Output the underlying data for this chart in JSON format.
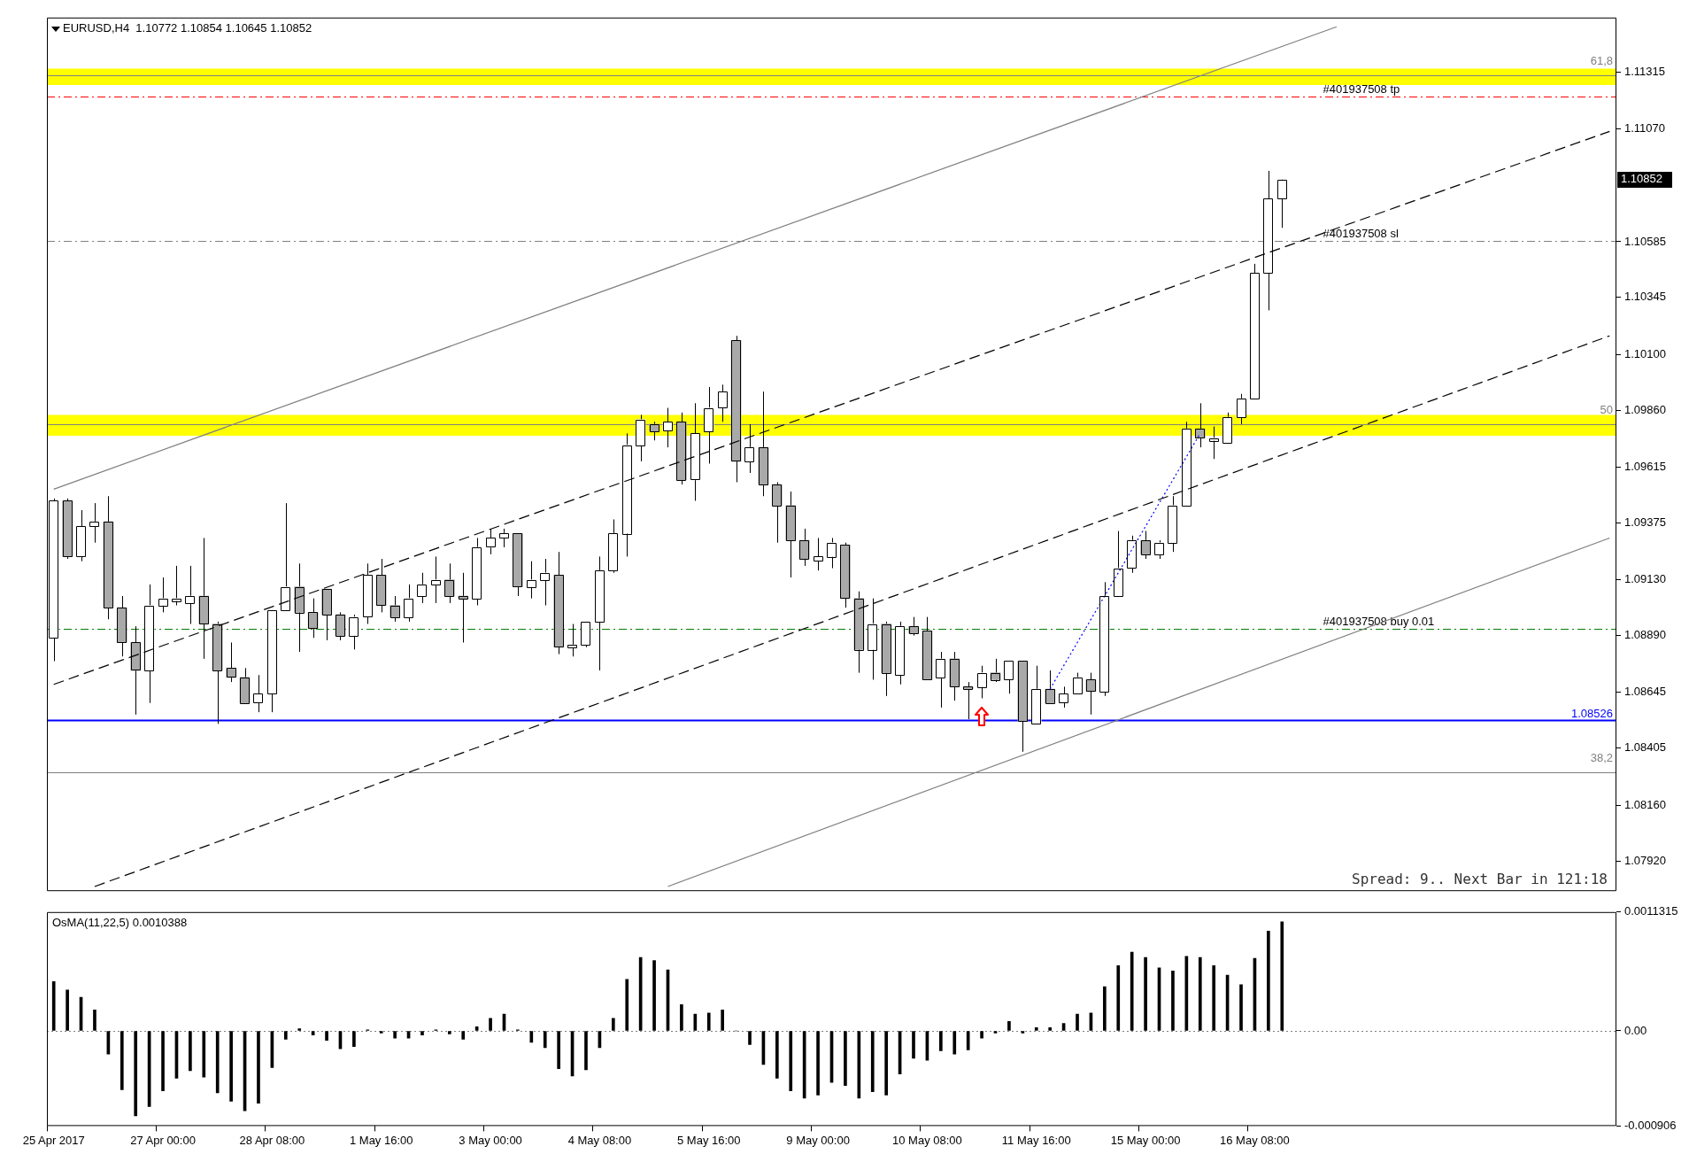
{
  "chart_data": [
    {
      "type": "candlestick",
      "title": "EURUSD,H4  1.10772 1.10854 1.10645 1.10852",
      "categories": [
        null,
        null,
        null,
        null,
        null,
        null,
        null,
        null,
        null,
        null,
        null,
        null,
        null,
        null,
        null,
        null,
        null,
        null,
        null,
        null,
        null,
        null,
        null,
        null,
        null,
        null,
        null,
        null,
        null,
        null,
        null,
        null,
        null,
        null,
        null,
        null,
        null,
        null,
        null,
        null,
        null,
        null,
        null,
        null,
        null,
        null,
        null,
        null,
        null,
        null,
        null,
        null,
        null,
        null,
        null,
        null,
        null,
        null,
        null,
        null,
        null,
        null,
        null,
        null,
        null,
        null,
        null,
        null,
        null,
        null,
        null,
        null,
        null,
        null,
        null,
        null,
        null,
        null,
        null,
        null,
        null,
        null,
        null,
        null,
        null,
        null,
        null,
        null,
        null,
        null,
        null,
        null,
        null,
        null,
        null,
        null,
        null,
        null,
        null,
        null,
        null,
        null,
        null,
        null,
        null,
        null,
        null,
        null,
        null,
        null,
        null,
        null,
        null,
        null,
        null
      ],
      "ohlc": [
        [
          1.0888,
          1.0948,
          1.0878,
          1.0947
        ],
        [
          1.0947,
          1.0948,
          1.0922,
          1.0923
        ],
        [
          1.0923,
          1.0943,
          1.0921,
          1.0936
        ],
        [
          1.0936,
          1.0946,
          1.0929,
          1.0938
        ],
        [
          1.0938,
          1.0949,
          1.0896,
          1.0901
        ],
        [
          1.0901,
          1.0906,
          1.088,
          1.0886
        ],
        [
          1.0886,
          1.0893,
          1.0855,
          1.0874
        ],
        [
          1.0874,
          1.0911,
          1.086,
          1.0902
        ],
        [
          1.0902,
          1.0914,
          1.0899,
          1.0905
        ],
        [
          1.0904,
          1.0919,
          1.0902,
          1.0905
        ],
        [
          1.0903,
          1.0919,
          1.0894,
          1.0906
        ],
        [
          1.0906,
          1.0931,
          1.0879,
          1.0894
        ],
        [
          1.0894,
          1.0895,
          1.0851,
          1.0874
        ],
        [
          1.0875,
          1.0886,
          1.0869,
          1.0871
        ],
        [
          1.0871,
          1.0875,
          1.086,
          1.086
        ],
        [
          1.086,
          1.0872,
          1.0856,
          1.0864
        ],
        [
          1.0864,
          1.09,
          1.0856,
          1.09
        ],
        [
          1.09,
          1.0946,
          1.09,
          1.091
        ],
        [
          1.091,
          1.092,
          1.0882,
          1.0899
        ],
        [
          1.0899,
          1.0905,
          1.0888,
          1.0892
        ],
        [
          1.0909,
          1.0909,
          1.0887,
          1.0898
        ],
        [
          1.0898,
          1.0899,
          1.0887,
          1.0889
        ],
        [
          1.0889,
          1.0898,
          1.0883,
          1.0897
        ],
        [
          1.0897,
          1.092,
          1.0894,
          1.0915
        ],
        [
          1.0915,
          1.0922,
          1.0899,
          1.0902
        ],
        [
          1.0902,
          1.0906,
          1.0895,
          1.0897
        ],
        [
          1.0897,
          1.0911,
          1.0895,
          1.0905
        ],
        [
          1.0906,
          1.0916,
          1.0903,
          1.0911
        ],
        [
          1.0911,
          1.0923,
          1.0903,
          1.0913
        ],
        [
          1.0913,
          1.092,
          1.0903,
          1.0906
        ],
        [
          1.0906,
          1.0916,
          1.0886,
          1.0905
        ],
        [
          1.0905,
          1.0931,
          1.0902,
          1.0927
        ],
        [
          1.0927,
          1.0935,
          1.0924,
          1.0931
        ],
        [
          1.0931,
          1.0935,
          1.0927,
          1.0933
        ],
        [
          1.0933,
          1.0933,
          1.0906,
          1.091
        ],
        [
          1.091,
          1.0921,
          1.0905,
          1.0913
        ],
        [
          1.0913,
          1.0922,
          1.0902,
          1.0916
        ],
        [
          1.0915,
          1.0925,
          1.0881,
          1.0884
        ],
        [
          1.0884,
          1.0894,
          1.088,
          1.0885
        ],
        [
          1.0885,
          1.0895,
          1.0884,
          1.0895
        ],
        [
          1.0895,
          1.0923,
          1.0874,
          1.0917
        ],
        [
          1.0917,
          1.0939,
          1.0916,
          1.0933
        ],
        [
          1.0933,
          1.0976,
          1.0923,
          1.0971
        ],
        [
          1.0971,
          1.0984,
          1.0964,
          1.0982
        ],
        [
          1.098,
          1.0981,
          1.0973,
          1.0977
        ],
        [
          1.0977,
          1.0987,
          1.097,
          1.0981
        ],
        [
          1.0981,
          1.0985,
          1.0954,
          1.0956
        ],
        [
          1.0956,
          1.0989,
          1.0947,
          1.0976
        ],
        [
          1.0977,
          1.0996,
          1.0963,
          1.0987
        ],
        [
          1.0987,
          1.0997,
          1.0981,
          1.0994
        ],
        [
          1.1016,
          1.1018,
          1.0955,
          1.0964
        ],
        [
          1.0964,
          1.098,
          1.0959,
          1.097
        ],
        [
          1.097,
          1.0994,
          1.0949,
          1.0954
        ],
        [
          1.0954,
          1.0955,
          1.0929,
          1.0945
        ],
        [
          1.0945,
          1.0951,
          1.0914,
          1.093
        ],
        [
          1.093,
          1.0935,
          1.0919,
          1.0922
        ],
        [
          1.0921,
          1.0931,
          1.0917,
          1.0923
        ],
        [
          1.0923,
          1.0931,
          1.0918,
          1.0929
        ],
        [
          1.0928,
          1.0929,
          1.0901,
          1.0905
        ],
        [
          1.0905,
          1.0908,
          1.0873,
          1.0883
        ],
        [
          1.0883,
          1.0905,
          1.087,
          1.0894
        ],
        [
          1.0894,
          1.0895,
          1.0863,
          1.0873
        ],
        [
          1.0872,
          1.0895,
          1.0868,
          1.0893
        ],
        [
          1.0893,
          1.0897,
          1.0889,
          1.089
        ],
        [
          1.0891,
          1.0897,
          1.087,
          1.087
        ],
        [
          1.0871,
          1.0882,
          1.0858,
          1.0879
        ],
        [
          1.0879,
          1.0882,
          1.0861,
          1.0867
        ],
        [
          1.0867,
          1.0869,
          1.0853,
          1.0866
        ],
        [
          1.0867,
          1.0876,
          1.0862,
          1.0873
        ],
        [
          1.0873,
          1.0879,
          1.0869,
          1.087
        ],
        [
          1.087,
          1.0878,
          1.0864,
          1.0878
        ],
        [
          1.0878,
          1.0878,
          1.0839,
          1.0852
        ],
        [
          1.0851,
          1.0876,
          1.0851,
          1.0866
        ],
        [
          1.0866,
          1.0874,
          1.086,
          1.086
        ],
        [
          1.086,
          1.0867,
          1.0858,
          1.0864
        ],
        [
          1.0864,
          1.0873,
          1.0864,
          1.0871
        ],
        [
          1.087,
          1.0873,
          1.0855,
          1.0865
        ],
        [
          1.0865,
          1.0912,
          1.0863,
          1.0906
        ],
        [
          1.0906,
          1.0934,
          1.0906,
          1.0918
        ],
        [
          1.0918,
          1.0932,
          1.0916,
          1.093
        ],
        [
          1.093,
          1.0934,
          1.0922,
          1.0924
        ],
        [
          1.0924,
          1.093,
          1.0922,
          1.0929
        ],
        [
          1.0929,
          1.0949,
          1.0925,
          1.0945
        ],
        [
          1.0945,
          1.0981,
          1.0945,
          1.0978
        ],
        [
          1.0978,
          1.0989,
          1.097,
          1.0974
        ],
        [
          1.0973,
          1.0979,
          1.0965,
          1.0974
        ],
        [
          1.0972,
          1.0985,
          1.0972,
          1.0983
        ],
        [
          1.0983,
          1.0993,
          1.098,
          1.0991
        ],
        [
          1.0991,
          1.1049,
          1.0991,
          1.1045
        ],
        [
          1.1045,
          1.1089,
          1.1029,
          1.1077
        ],
        [
          1.10772,
          1.10854,
          1.10645,
          1.10852
        ],
        null,
        null,
        null,
        null,
        null,
        null,
        null,
        null,
        null,
        null,
        null,
        null,
        null,
        null,
        null,
        null,
        null,
        null,
        null,
        null,
        null,
        null,
        null,
        null
      ],
      "colors": [
        "#ffffff",
        "#a9a9a9",
        "#ffffff",
        "#ffffff",
        "#a9a9a9",
        "#a9a9a9",
        "#a9a9a9",
        "#ffffff",
        "#ffffff",
        "#ffffff",
        "#ffffff",
        "#a9a9a9",
        "#a9a9a9",
        "#a9a9a9",
        "#a9a9a9",
        "#ffffff",
        "#ffffff",
        "#ffffff",
        "#a9a9a9",
        "#a9a9a9",
        "#a9a9a9",
        "#a9a9a9",
        "#ffffff",
        "#ffffff",
        "#a9a9a9",
        "#a9a9a9",
        "#ffffff",
        "#ffffff",
        "#ffffff",
        "#a9a9a9",
        "#a9a9a9",
        "#ffffff",
        "#ffffff",
        "#ffffff",
        "#a9a9a9",
        "#ffffff",
        "#ffffff",
        "#a9a9a9",
        "#ffffff",
        "#ffffff",
        "#ffffff",
        "#ffffff",
        "#ffffff",
        "#ffffff",
        "#a9a9a9",
        "#ffffff",
        "#a9a9a9",
        "#ffffff",
        "#ffffff",
        "#ffffff",
        "#a9a9a9",
        "#ffffff",
        "#a9a9a9",
        "#a9a9a9",
        "#a9a9a9",
        "#a9a9a9",
        "#ffffff",
        "#ffffff",
        "#a9a9a9",
        "#a9a9a9",
        "#ffffff",
        "#a9a9a9",
        "#ffffff",
        "#a9a9a9",
        "#a9a9a9",
        "#ffffff",
        "#a9a9a9",
        "#a9a9a9",
        "#ffffff",
        "#a9a9a9",
        "#ffffff",
        "#a9a9a9",
        "#ffffff",
        "#a9a9a9",
        "#ffffff",
        "#ffffff",
        "#a9a9a9",
        "#ffffff",
        "#ffffff",
        "#ffffff",
        "#a9a9a9",
        "#ffffff",
        "#ffffff",
        "#ffffff",
        "#a9a9a9",
        "#ffffff",
        "#ffffff",
        "#ffffff",
        "#ffffff",
        "#ffffff",
        "#ffffff",
        null,
        null,
        null,
        null,
        null,
        null,
        null,
        null,
        null,
        null,
        null,
        null,
        null,
        null,
        null,
        null,
        null,
        null,
        null,
        null,
        null,
        null,
        null,
        null
      ],
      "color": "#000000",
      "series": [
        {
          "type": "line",
          "color": "#808080",
          "line_style": "solid",
          "values": [
            1.0952,
            null,
            null,
            null,
            null,
            null,
            null,
            null,
            null,
            null,
            null,
            null,
            null,
            null,
            null,
            null,
            null,
            null,
            null,
            null,
            null,
            null,
            null,
            null,
            null,
            null,
            null,
            null,
            null,
            null,
            null,
            null,
            null,
            null,
            null,
            null,
            null,
            null,
            null,
            null,
            null,
            null,
            null,
            null,
            null,
            null,
            null,
            null,
            null,
            null,
            null,
            null,
            null,
            null,
            null,
            null,
            null,
            null,
            null,
            null,
            null,
            null,
            null,
            null,
            null,
            null,
            null,
            null,
            null,
            null,
            null,
            null,
            null,
            null,
            null,
            null,
            null,
            null,
            null,
            null,
            null,
            null,
            null,
            null,
            null,
            null,
            null,
            null,
            null,
            null,
            null,
            null,
            null,
            null,
            1.1151,
            null,
            null,
            null,
            null,
            null,
            null,
            null,
            null,
            null,
            null,
            null,
            null,
            null,
            null,
            null,
            null,
            null,
            null,
            null,
            null
          ]
        },
        {
          "type": "line",
          "color": "#000000",
          "line_style": "dashed",
          "values": [
            1.0868,
            null,
            null,
            null,
            null,
            null,
            null,
            null,
            null,
            null,
            null,
            null,
            null,
            null,
            null,
            null,
            null,
            null,
            null,
            null,
            null,
            null,
            null,
            null,
            null,
            null,
            null,
            null,
            null,
            null,
            null,
            null,
            null,
            null,
            null,
            null,
            null,
            null,
            null,
            null,
            null,
            null,
            null,
            null,
            null,
            null,
            null,
            null,
            null,
            null,
            null,
            null,
            null,
            null,
            null,
            null,
            null,
            null,
            null,
            null,
            null,
            null,
            null,
            null,
            null,
            null,
            null,
            null,
            null,
            null,
            null,
            null,
            null,
            null,
            null,
            null,
            null,
            null,
            null,
            null,
            null,
            null,
            null,
            null,
            null,
            null,
            null,
            null,
            null,
            null,
            null,
            null,
            null,
            null,
            null,
            null,
            null,
            null,
            null,
            null,
            null,
            null,
            null,
            null,
            null,
            null,
            null,
            null,
            null,
            null,
            null,
            null,
            null,
            null,
            1.1106
          ]
        },
        {
          "type": "line",
          "color": "#000000",
          "line_style": "dashed",
          "values": [
            null,
            null,
            null,
            1.0781,
            null,
            null,
            null,
            null,
            null,
            null,
            null,
            null,
            null,
            null,
            null,
            null,
            null,
            null,
            null,
            null,
            null,
            null,
            null,
            null,
            null,
            null,
            null,
            null,
            null,
            null,
            null,
            null,
            null,
            null,
            null,
            null,
            null,
            null,
            null,
            null,
            null,
            null,
            null,
            null,
            null,
            null,
            null,
            null,
            null,
            null,
            null,
            null,
            null,
            null,
            null,
            null,
            null,
            null,
            null,
            null,
            null,
            null,
            null,
            null,
            null,
            null,
            null,
            null,
            null,
            null,
            null,
            null,
            null,
            null,
            null,
            null,
            null,
            null,
            null,
            null,
            null,
            null,
            null,
            null,
            null,
            null,
            null,
            null,
            null,
            null,
            null,
            null,
            null,
            null,
            null,
            null,
            null,
            null,
            null,
            null,
            null,
            null,
            null,
            null,
            null,
            null,
            null,
            null,
            null,
            null,
            null,
            null,
            null,
            null,
            1.1018
          ]
        },
        {
          "type": "line",
          "color": "#808080",
          "line_style": "solid",
          "values": [
            null,
            null,
            null,
            null,
            null,
            null,
            null,
            null,
            null,
            null,
            null,
            null,
            null,
            null,
            null,
            null,
            null,
            null,
            null,
            null,
            null,
            null,
            null,
            null,
            null,
            null,
            null,
            null,
            null,
            null,
            null,
            null,
            null,
            null,
            null,
            null,
            null,
            null,
            null,
            null,
            null,
            null,
            null,
            null,
            null,
            1.0781,
            null,
            null,
            null,
            null,
            null,
            null,
            null,
            null,
            null,
            null,
            null,
            null,
            null,
            null,
            null,
            null,
            null,
            null,
            null,
            null,
            null,
            null,
            null,
            null,
            null,
            null,
            null,
            null,
            null,
            null,
            null,
            null,
            null,
            null,
            null,
            null,
            null,
            null,
            null,
            null,
            null,
            null,
            null,
            null,
            null,
            null,
            null,
            null,
            null,
            null,
            null,
            null,
            null,
            null,
            null,
            null,
            null,
            null,
            null,
            null,
            null,
            null,
            null,
            null,
            null,
            null,
            null,
            null,
            1.0931
          ]
        },
        {
          "type": "line",
          "color": "#0000ff",
          "line_style": "dotted",
          "values": [
            null,
            null,
            null,
            null,
            null,
            null,
            null,
            null,
            null,
            null,
            null,
            null,
            null,
            null,
            null,
            null,
            null,
            null,
            null,
            null,
            null,
            null,
            null,
            null,
            null,
            null,
            null,
            null,
            null,
            null,
            null,
            null,
            null,
            null,
            null,
            null,
            null,
            null,
            null,
            null,
            null,
            null,
            null,
            null,
            null,
            null,
            null,
            null,
            null,
            null,
            null,
            null,
            null,
            null,
            null,
            null,
            null,
            null,
            null,
            null,
            null,
            null,
            null,
            null,
            null,
            null,
            null,
            null,
            null,
            null,
            null,
            null,
            null,
            1.0866,
            null,
            null,
            null,
            null,
            null,
            null,
            null,
            null,
            null,
            null,
            1.0976,
            null,
            null,
            null,
            null,
            null,
            null,
            null,
            null,
            null,
            null,
            null,
            null,
            null,
            null,
            null,
            null,
            null,
            null,
            null,
            null,
            null,
            null,
            null,
            null,
            null,
            null,
            null,
            null,
            null,
            null
          ]
        }
      ],
      "ylim": [
        1.0779,
        1.1155
      ],
      "yticks": [
        {
          "value": 1.0792,
          "label": "1.07920"
        },
        {
          "value": 1.0816,
          "label": "1.08160"
        },
        {
          "value": 1.08405,
          "label": "1.08405"
        },
        {
          "value": 1.08645,
          "label": "1.08645"
        },
        {
          "value": 1.0889,
          "label": "1.08890"
        },
        {
          "value": 1.0913,
          "label": "1.09130"
        },
        {
          "value": 1.09375,
          "label": "1.09375"
        },
        {
          "value": 1.09615,
          "label": "1.09615"
        },
        {
          "value": 1.0986,
          "label": "1.09860"
        },
        {
          "value": 1.101,
          "label": "1.10100"
        },
        {
          "value": 1.10345,
          "label": "1.10345"
        },
        {
          "value": 1.10585,
          "label": "1.10585"
        },
        {
          "value": 1.1107,
          "label": "1.11070"
        },
        {
          "value": 1.11315,
          "label": "1.11315"
        }
      ],
      "tick_labels": "y",
      "bands": [
        {
          "axis": "y",
          "from": 1.1126,
          "to": 1.1133,
          "color": "#ffff00"
        },
        {
          "axis": "y",
          "from": 1.0975,
          "to": 1.0984,
          "color": "#ffff00"
        }
      ],
      "ref_lines": [
        {
          "axis": "y",
          "value": 1.113,
          "color": "#808080",
          "line_style": "solid"
        },
        {
          "axis": "y",
          "value": 1.098,
          "color": "#808080",
          "line_style": "solid"
        },
        {
          "axis": "y",
          "value": 1.083,
          "color": "#808080",
          "line_style": "solid"
        },
        {
          "axis": "y",
          "value": 1.1121,
          "label": "#401937508 tp",
          "color": "#ff0000",
          "line_style": "dashed"
        },
        {
          "axis": "y",
          "value": 1.1059,
          "label": "#401937508 sl",
          "color": "#808080",
          "line_style": "dashed"
        },
        {
          "axis": "y",
          "value": 1.0892,
          "label": "#401937508 buy 0.01",
          "color": "#008000",
          "line_style": "dashed"
        },
        {
          "axis": "y",
          "value": 1.08526,
          "label": "1.08526",
          "color": "#0000ff",
          "line_style": "solid"
        }
      ],
      "annotations": [
        "1.10852",
        {
          "text": "61,8",
          "y": 1.113
        },
        {
          "text": "50",
          "y": 1.098
        },
        {
          "text": "38,2",
          "y": 1.083
        },
        "Spread: 9.. Next Bar in 121:18"
      ]
    },
    {
      "type": "bar",
      "title": "OsMA(11,22,5) 0.0010388",
      "categories": [
        "25 Apr 2017",
        null,
        null,
        null,
        null,
        null,
        null,
        null,
        "27 Apr 00:00",
        null,
        null,
        null,
        null,
        null,
        null,
        null,
        "28 Apr 08:00",
        null,
        null,
        null,
        null,
        null,
        null,
        null,
        "1 May 16:00",
        null,
        null,
        null,
        null,
        null,
        null,
        null,
        "3 May 00:00",
        null,
        null,
        null,
        null,
        null,
        null,
        null,
        "4 May 08:00",
        null,
        null,
        null,
        null,
        null,
        null,
        null,
        "5 May 16:00",
        null,
        null,
        null,
        null,
        null,
        null,
        null,
        "9 May 00:00",
        null,
        null,
        null,
        null,
        null,
        null,
        null,
        "10 May 08:00",
        null,
        null,
        null,
        null,
        null,
        null,
        null,
        "11 May 16:00",
        null,
        null,
        null,
        null,
        null,
        null,
        null,
        "15 May 00:00",
        null,
        null,
        null,
        null,
        null,
        null,
        null,
        "16 May 08:00",
        null,
        null,
        null,
        null,
        null,
        null,
        null,
        null,
        null,
        null,
        null,
        null,
        null,
        null,
        null,
        null,
        null,
        null,
        null,
        null,
        null,
        null,
        null,
        null,
        null,
        null
      ],
      "values": [
        0.00047,
        0.00039,
        0.00032,
        0.0002,
        -0.00022,
        -0.00056,
        -0.00081,
        -0.00072,
        -0.00057,
        -0.00045,
        -0.00038,
        -0.00044,
        -0.00059,
        -0.00067,
        -0.00076,
        -0.00069,
        -0.00035,
        -8e-05,
        2e-05,
        -4e-05,
        -9e-05,
        -0.00017,
        -0.00015,
        1e-05,
        -2e-05,
        -7e-05,
        -7e-05,
        -4e-05,
        1e-05,
        -3e-05,
        -8e-05,
        4e-05,
        0.00012,
        0.00016,
        1e-05,
        -0.00011,
        -0.00016,
        -0.00036,
        -0.00043,
        -0.00037,
        -0.00016,
        0.00012,
        0.00049,
        0.0007,
        0.00067,
        0.00058,
        0.00025,
        0.00016,
        0.00017,
        0.0002,
        0,
        -0.00013,
        -0.00032,
        -0.00045,
        -0.00057,
        -0.00064,
        -0.00061,
        -0.00049,
        -0.00052,
        -0.00064,
        -0.00058,
        -0.00061,
        -0.00041,
        -0.00026,
        -0.00028,
        -0.00019,
        -0.00022,
        -0.00018,
        -7e-05,
        -2e-05,
        9e-05,
        -2e-05,
        3e-05,
        3e-05,
        7e-05,
        0.00016,
        0.00017,
        0.00042,
        0.00062,
        0.00075,
        0.0007,
        0.0006,
        0.00057,
        0.00071,
        0.0007,
        0.00062,
        0.00053,
        0.00044,
        0.00069,
        0.00095,
        0.0010388,
        null,
        null,
        null,
        null,
        null,
        null,
        null,
        null,
        null,
        null,
        null,
        null,
        null,
        null,
        null,
        null,
        null,
        null,
        null,
        null,
        null,
        null,
        null,
        null
      ],
      "color": "#000000",
      "ylim": [
        -0.000906,
        0.0011315
      ],
      "yticks": [
        {
          "value": -0.000906,
          "label": "-0.000906"
        },
        {
          "value": 0,
          "label": "0.00"
        },
        {
          "value": 0.0011315,
          "label": "0.0011315"
        }
      ],
      "ref_lines": [
        {
          "axis": "y",
          "value": 0,
          "color": "#808080",
          "line_style": "dotted"
        }
      ]
    }
  ]
}
